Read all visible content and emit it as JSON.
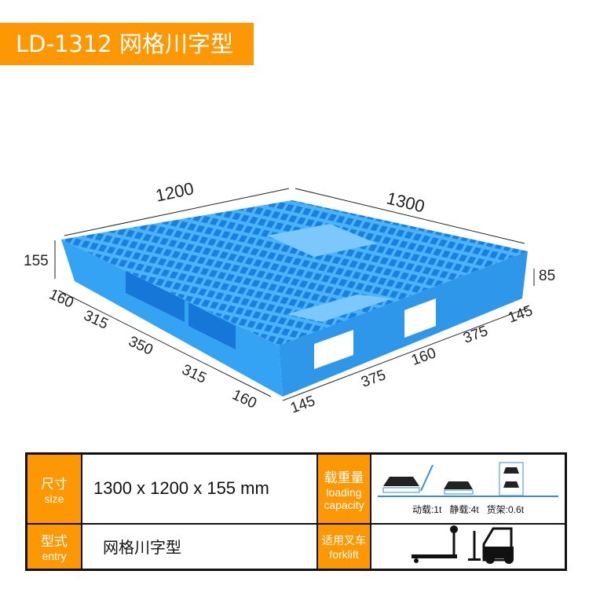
{
  "banner": {
    "title": "LD-1312  网格川字型"
  },
  "dimensions": {
    "width": "1200",
    "length": "1300",
    "height": "155",
    "entry_height": "85",
    "left_segments": [
      "160",
      "315",
      "350",
      "315",
      "160"
    ],
    "right_segments": [
      "145",
      "375",
      "160",
      "375",
      "145"
    ]
  },
  "colors": {
    "accent": "#fd9704",
    "pallet": "#3fa9f5"
  },
  "specs": {
    "size_label_cn": "尺寸",
    "size_label_en": "size",
    "size_value": "1300 x 1200 x 155 mm",
    "load_label_cn": "载重量",
    "load_label_en_1": "loading",
    "load_label_en_2": "capacity",
    "loads": [
      "动载:1t",
      "静载:4t",
      "货架:0.6t"
    ],
    "entry_label_cn": "型式",
    "entry_label_en": "entry",
    "entry_value": "网格川字型",
    "forklift_label_cn": "适用叉车",
    "forklift_label_en": "forklift"
  }
}
